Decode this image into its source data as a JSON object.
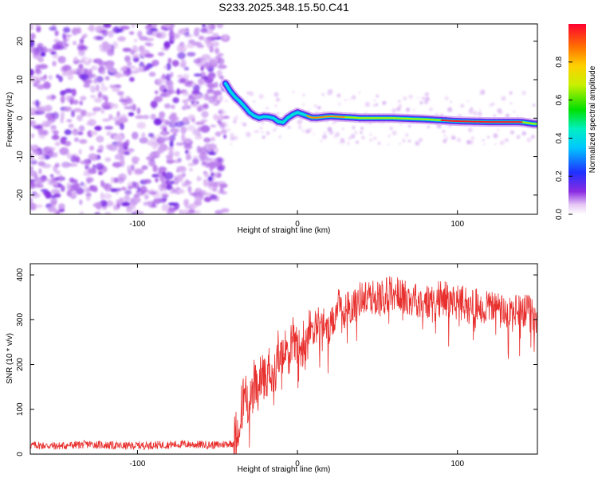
{
  "figure_title": "S233.2025.348.15.50.C41",
  "chart_data": [
    {
      "type": "heatmap",
      "title": "S233.2025.348.15.50.C41",
      "xlabel": "Height of straight line (km)",
      "ylabel": "Frequency (Hz)",
      "xlim": [
        -167,
        150
      ],
      "ylim": [
        -25,
        24.5
      ],
      "xticks": [
        -100,
        0,
        100
      ],
      "yticks": [
        -20,
        -10,
        0,
        10,
        20
      ],
      "colorbar": {
        "label": "Normalized spectral amplitude",
        "range": [
          0,
          1
        ],
        "ticks": [
          "0.0",
          "0.2",
          "0.4",
          "0.6",
          "0.8"
        ],
        "colormap": "rainbow (white-purple-blue-cyan-green-yellow-orange-red)"
      },
      "signal_trace": {
        "description": "Frequency of the narrowband signal peak versus height",
        "x_km": [
          -45,
          -42,
          -38,
          -35,
          -30,
          -25,
          -20,
          -15,
          -10,
          -5,
          0,
          10,
          20,
          40,
          60,
          80,
          100,
          120,
          140,
          148
        ],
        "freq_hz": [
          9,
          7,
          5,
          4,
          1.5,
          0,
          0.5,
          0,
          -1.5,
          0.5,
          1.5,
          0,
          0.5,
          0,
          0,
          -0.3,
          -0.8,
          -1,
          -1,
          -1.5
        ],
        "peak_amplitude_region_km": [
          90,
          140
        ],
        "noise_region_km": [
          -167,
          -45
        ]
      }
    },
    {
      "type": "line",
      "xlabel": "Height of straight line (km)",
      "ylabel": "SNR (10 * v/v)",
      "xlim": [
        -167,
        150
      ],
      "ylim": [
        0,
        425
      ],
      "xticks": [
        -100,
        0,
        100
      ],
      "yticks": [
        0,
        100,
        200,
        300,
        400
      ],
      "series": [
        {
          "name": "SNR",
          "color": "#e8312f",
          "x": [
            -167,
            -150,
            -130,
            -110,
            -90,
            -70,
            -50,
            -40,
            -36,
            -33,
            -30,
            -27,
            -25,
            -22,
            -20,
            -17,
            -15,
            -12,
            -10,
            -7,
            -5,
            -2,
            0,
            5,
            10,
            15,
            20,
            25,
            30,
            40,
            50,
            60,
            70,
            80,
            90,
            100,
            110,
            120,
            130,
            140,
            150
          ],
          "y": [
            20,
            18,
            22,
            18,
            20,
            22,
            20,
            25,
            80,
            150,
            110,
            160,
            130,
            190,
            170,
            200,
            160,
            230,
            220,
            240,
            230,
            260,
            230,
            260,
            280,
            300,
            270,
            330,
            320,
            350,
            350,
            360,
            350,
            340,
            350,
            340,
            330,
            330,
            320,
            320,
            310
          ]
        }
      ]
    }
  ]
}
